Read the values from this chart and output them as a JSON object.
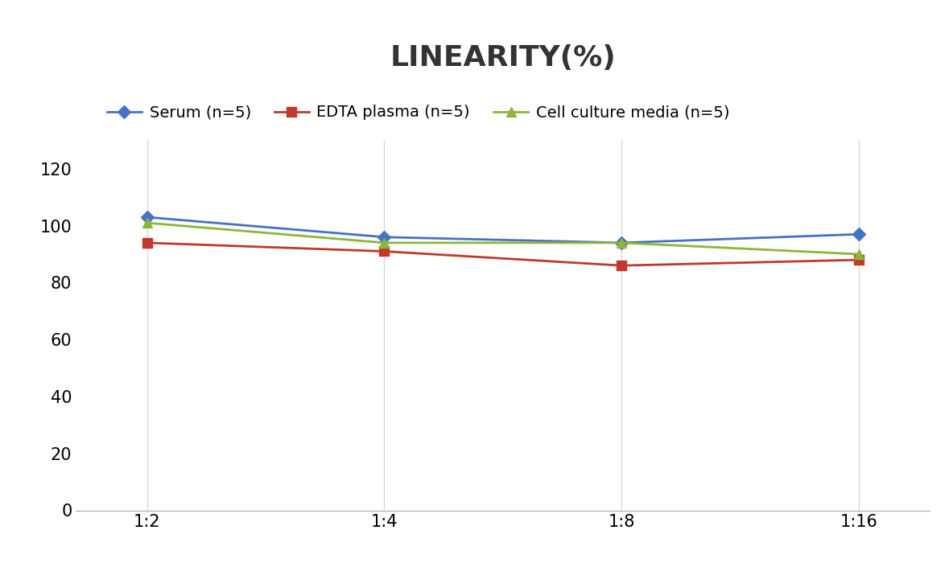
{
  "title": "LINEARITY(%)",
  "x_labels": [
    "1:2",
    "1:4",
    "1:8",
    "1:16"
  ],
  "x_positions": [
    0,
    1,
    2,
    3
  ],
  "series": [
    {
      "name": "Serum (n=5)",
      "values": [
        103,
        96,
        94,
        97
      ],
      "color": "#4472C4",
      "marker": "D",
      "marker_size": 8,
      "linewidth": 2.0
    },
    {
      "name": "EDTA plasma (n=5)",
      "values": [
        94,
        91,
        86,
        88
      ],
      "color": "#C0392B",
      "marker": "s",
      "marker_size": 8,
      "linewidth": 2.0
    },
    {
      "name": "Cell culture media (n=5)",
      "values": [
        101,
        94,
        94,
        90
      ],
      "color": "#8DB53B",
      "marker": "^",
      "marker_size": 8,
      "linewidth": 2.0
    }
  ],
  "ylim": [
    0,
    130
  ],
  "yticks": [
    0,
    20,
    40,
    60,
    80,
    100,
    120
  ],
  "background_color": "#FFFFFF",
  "grid_color": "#D9D9D9",
  "title_fontsize": 26,
  "tick_fontsize": 15,
  "legend_fontsize": 14
}
